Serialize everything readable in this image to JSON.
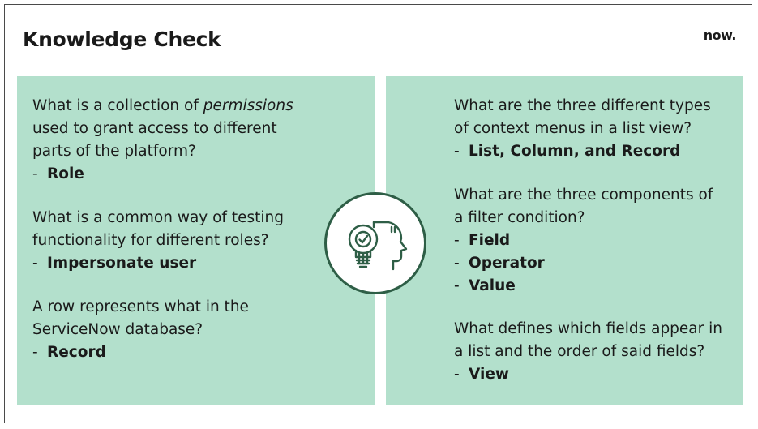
{
  "header": {
    "title": "Knowledge Check",
    "logo": "now."
  },
  "left_panel": {
    "items": [
      {
        "question_pre": "What is a collection of ",
        "question_em": "permissions",
        "question_lines": [
          "used to grant access to different",
          "parts of the platform?"
        ],
        "answer": "Role"
      },
      {
        "question_lines": [
          "What is a common way of testing",
          "functionality for different roles?"
        ],
        "answer": "Impersonate user"
      },
      {
        "question_lines": [
          "A row represents what in the",
          "ServiceNow database?"
        ],
        "answer": "Record"
      }
    ]
  },
  "right_panel": {
    "items": [
      {
        "question_lines": [
          "What are the three different types",
          "of context menus in a list view?"
        ],
        "answers": [
          "List, Column, and Record"
        ]
      },
      {
        "question_lines": [
          "What are the three components of",
          "a filter condition?"
        ],
        "answers": [
          "Field",
          "Operator",
          "Value"
        ]
      },
      {
        "question_lines": [
          "What defines which fields appear in",
          "a list and the order of said fields?"
        ],
        "answers": [
          "View"
        ]
      }
    ]
  },
  "badge": {
    "icon": "lightbulb-head-icon",
    "color": "#2e5e46"
  },
  "colors": {
    "panel_bg": "#b3e0cc",
    "text": "#1a1a1a"
  }
}
